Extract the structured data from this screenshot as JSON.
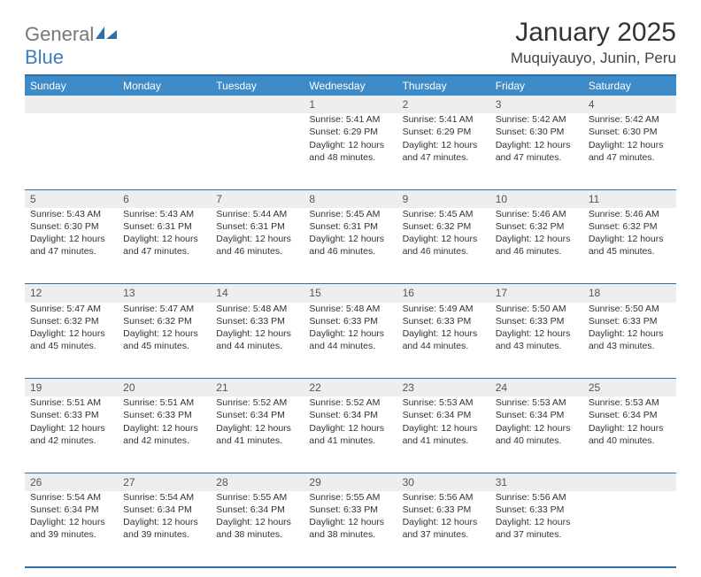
{
  "brand": {
    "name_a": "General",
    "name_b": "Blue"
  },
  "header": {
    "month_title": "January 2025",
    "location": "Muquiyauyo, Junin, Peru"
  },
  "colors": {
    "header_bg": "#3d8bc8",
    "border": "#2f6fa8",
    "daynum_bg": "#eceeef",
    "logo_gray": "#777777",
    "logo_blue": "#3b7fc4"
  },
  "day_headers": [
    "Sunday",
    "Monday",
    "Tuesday",
    "Wednesday",
    "Thursday",
    "Friday",
    "Saturday"
  ],
  "weeks": [
    {
      "nums": [
        "",
        "",
        "",
        "1",
        "2",
        "3",
        "4"
      ],
      "cells": [
        null,
        null,
        null,
        {
          "sunrise": "5:41 AM",
          "sunset": "6:29 PM",
          "dl_h": 12,
          "dl_m": 48
        },
        {
          "sunrise": "5:41 AM",
          "sunset": "6:29 PM",
          "dl_h": 12,
          "dl_m": 47
        },
        {
          "sunrise": "5:42 AM",
          "sunset": "6:30 PM",
          "dl_h": 12,
          "dl_m": 47
        },
        {
          "sunrise": "5:42 AM",
          "sunset": "6:30 PM",
          "dl_h": 12,
          "dl_m": 47
        }
      ]
    },
    {
      "nums": [
        "5",
        "6",
        "7",
        "8",
        "9",
        "10",
        "11"
      ],
      "cells": [
        {
          "sunrise": "5:43 AM",
          "sunset": "6:30 PM",
          "dl_h": 12,
          "dl_m": 47
        },
        {
          "sunrise": "5:43 AM",
          "sunset": "6:31 PM",
          "dl_h": 12,
          "dl_m": 47
        },
        {
          "sunrise": "5:44 AM",
          "sunset": "6:31 PM",
          "dl_h": 12,
          "dl_m": 46
        },
        {
          "sunrise": "5:45 AM",
          "sunset": "6:31 PM",
          "dl_h": 12,
          "dl_m": 46
        },
        {
          "sunrise": "5:45 AM",
          "sunset": "6:32 PM",
          "dl_h": 12,
          "dl_m": 46
        },
        {
          "sunrise": "5:46 AM",
          "sunset": "6:32 PM",
          "dl_h": 12,
          "dl_m": 46
        },
        {
          "sunrise": "5:46 AM",
          "sunset": "6:32 PM",
          "dl_h": 12,
          "dl_m": 45
        }
      ]
    },
    {
      "nums": [
        "12",
        "13",
        "14",
        "15",
        "16",
        "17",
        "18"
      ],
      "cells": [
        {
          "sunrise": "5:47 AM",
          "sunset": "6:32 PM",
          "dl_h": 12,
          "dl_m": 45
        },
        {
          "sunrise": "5:47 AM",
          "sunset": "6:32 PM",
          "dl_h": 12,
          "dl_m": 45
        },
        {
          "sunrise": "5:48 AM",
          "sunset": "6:33 PM",
          "dl_h": 12,
          "dl_m": 44
        },
        {
          "sunrise": "5:48 AM",
          "sunset": "6:33 PM",
          "dl_h": 12,
          "dl_m": 44
        },
        {
          "sunrise": "5:49 AM",
          "sunset": "6:33 PM",
          "dl_h": 12,
          "dl_m": 44
        },
        {
          "sunrise": "5:50 AM",
          "sunset": "6:33 PM",
          "dl_h": 12,
          "dl_m": 43
        },
        {
          "sunrise": "5:50 AM",
          "sunset": "6:33 PM",
          "dl_h": 12,
          "dl_m": 43
        }
      ]
    },
    {
      "nums": [
        "19",
        "20",
        "21",
        "22",
        "23",
        "24",
        "25"
      ],
      "cells": [
        {
          "sunrise": "5:51 AM",
          "sunset": "6:33 PM",
          "dl_h": 12,
          "dl_m": 42
        },
        {
          "sunrise": "5:51 AM",
          "sunset": "6:33 PM",
          "dl_h": 12,
          "dl_m": 42
        },
        {
          "sunrise": "5:52 AM",
          "sunset": "6:34 PM",
          "dl_h": 12,
          "dl_m": 41
        },
        {
          "sunrise": "5:52 AM",
          "sunset": "6:34 PM",
          "dl_h": 12,
          "dl_m": 41
        },
        {
          "sunrise": "5:53 AM",
          "sunset": "6:34 PM",
          "dl_h": 12,
          "dl_m": 41
        },
        {
          "sunrise": "5:53 AM",
          "sunset": "6:34 PM",
          "dl_h": 12,
          "dl_m": 40
        },
        {
          "sunrise": "5:53 AM",
          "sunset": "6:34 PM",
          "dl_h": 12,
          "dl_m": 40
        }
      ]
    },
    {
      "nums": [
        "26",
        "27",
        "28",
        "29",
        "30",
        "31",
        ""
      ],
      "cells": [
        {
          "sunrise": "5:54 AM",
          "sunset": "6:34 PM",
          "dl_h": 12,
          "dl_m": 39
        },
        {
          "sunrise": "5:54 AM",
          "sunset": "6:34 PM",
          "dl_h": 12,
          "dl_m": 39
        },
        {
          "sunrise": "5:55 AM",
          "sunset": "6:34 PM",
          "dl_h": 12,
          "dl_m": 38
        },
        {
          "sunrise": "5:55 AM",
          "sunset": "6:33 PM",
          "dl_h": 12,
          "dl_m": 38
        },
        {
          "sunrise": "5:56 AM",
          "sunset": "6:33 PM",
          "dl_h": 12,
          "dl_m": 37
        },
        {
          "sunrise": "5:56 AM",
          "sunset": "6:33 PM",
          "dl_h": 12,
          "dl_m": 37
        },
        null
      ]
    }
  ],
  "labels": {
    "sunrise_prefix": "Sunrise: ",
    "sunset_prefix": "Sunset: ",
    "daylight_prefix": "Daylight: ",
    "hours_word": " hours",
    "and_word": "and ",
    "minutes_word": " minutes."
  }
}
